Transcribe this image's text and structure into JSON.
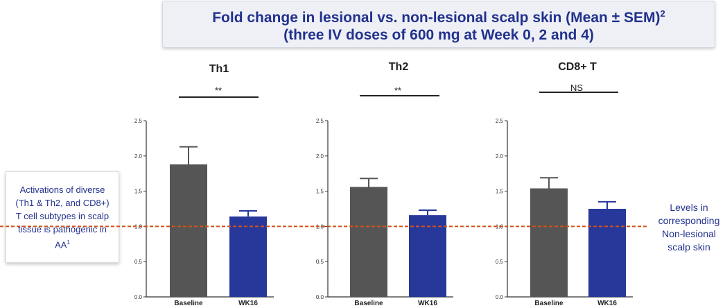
{
  "title": {
    "line1": "Fold change in lesional vs. non-lesional scalp skin (Mean ± SEM)",
    "line1_sup": "2",
    "line2": "(three IV doses of 600 mg at Week 0, 2 and 4)"
  },
  "left_note": {
    "text": "Activations of diverse (Th1 & Th2, and CD8+) T cell subtypes in scalp tissue is pathogenic in AA",
    "sup": "1"
  },
  "right_label": "Levels in corresponding Non-lesional scalp skin",
  "colors": {
    "baseline": "#555555",
    "wk16": "#27389a",
    "reference_line": "#d2521a",
    "title_text": "#22318d"
  },
  "chart_data": [
    {
      "type": "bar",
      "title": "Th1",
      "significance": "**",
      "categories": [
        "Baseline",
        "WK16"
      ],
      "values": [
        1.88,
        1.14
      ],
      "errors": [
        0.25,
        0.08
      ],
      "ylim": [
        0.0,
        2.5
      ],
      "yticks": [
        "0.0",
        "0.5",
        "1.0",
        "1.5",
        "2.0",
        "2.5"
      ],
      "reference_line": 1.0
    },
    {
      "type": "bar",
      "title": "Th2",
      "significance": "**",
      "categories": [
        "Baseline",
        "WK16"
      ],
      "values": [
        1.56,
        1.16
      ],
      "errors": [
        0.12,
        0.07
      ],
      "ylim": [
        0.0,
        2.5
      ],
      "yticks": [
        "0.0",
        "0.5",
        "1.0",
        "1.5",
        "2.0",
        "2.5"
      ],
      "reference_line": 1.0
    },
    {
      "type": "bar",
      "title": "CD8+ T",
      "significance": "NS",
      "categories": [
        "Baseline",
        "WK16"
      ],
      "values": [
        1.54,
        1.25
      ],
      "errors": [
        0.15,
        0.1
      ],
      "ylim": [
        0.0,
        2.5
      ],
      "yticks": [
        "0.0",
        "0.5",
        "1.0",
        "1.5",
        "2.0",
        "2.5"
      ],
      "reference_line": 1.0
    }
  ]
}
